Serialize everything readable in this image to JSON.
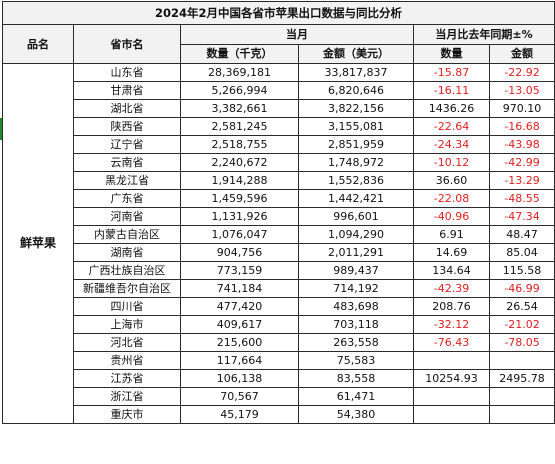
{
  "title": "2024年2月中国各省市苹果出口数据与同比分析",
  "headers": {
    "product": "品名",
    "province": "省市名",
    "current_month": "当月",
    "yoy": "当月比去年同期±%",
    "quantity": "数量（千克）",
    "amount": "金额（美元）",
    "yoy_quantity": "数量",
    "yoy_amount": "金额"
  },
  "product_name": "鲜苹果",
  "rows": [
    {
      "province": "山东省",
      "quantity": "28,369,181",
      "amount": "33,817,837",
      "yoy_quantity": "-15.87",
      "yoy_amount": "-22.92"
    },
    {
      "province": "甘肃省",
      "quantity": "5,266,994",
      "amount": "6,820,646",
      "yoy_quantity": "-16.11",
      "yoy_amount": "-13.05"
    },
    {
      "province": "湖北省",
      "quantity": "3,382,661",
      "amount": "3,822,156",
      "yoy_quantity": "1436.26",
      "yoy_amount": "970.10"
    },
    {
      "province": "陕西省",
      "quantity": "2,581,245",
      "amount": "3,155,081",
      "yoy_quantity": "-22.64",
      "yoy_amount": "-16.68"
    },
    {
      "province": "辽宁省",
      "quantity": "2,518,755",
      "amount": "2,851,959",
      "yoy_quantity": "-24.34",
      "yoy_amount": "-43.98"
    },
    {
      "province": "云南省",
      "quantity": "2,240,672",
      "amount": "1,748,972",
      "yoy_quantity": "-10.12",
      "yoy_amount": "-42.99"
    },
    {
      "province": "黑龙江省",
      "quantity": "1,914,288",
      "amount": "1,552,836",
      "yoy_quantity": "36.60",
      "yoy_amount": "-13.29"
    },
    {
      "province": "广东省",
      "quantity": "1,459,596",
      "amount": "1,442,421",
      "yoy_quantity": "-22.08",
      "yoy_amount": "-48.55"
    },
    {
      "province": "河南省",
      "quantity": "1,131,926",
      "amount": "996,601",
      "yoy_quantity": "-40.96",
      "yoy_amount": "-47.34"
    },
    {
      "province": "内蒙古自治区",
      "quantity": "1,076,047",
      "amount": "1,094,290",
      "yoy_quantity": "6.91",
      "yoy_amount": "48.47"
    },
    {
      "province": "湖南省",
      "quantity": "904,756",
      "amount": "2,011,291",
      "yoy_quantity": "14.69",
      "yoy_amount": "85.04"
    },
    {
      "province": "广西壮族自治区",
      "quantity": "773,159",
      "amount": "989,437",
      "yoy_quantity": "134.64",
      "yoy_amount": "115.58"
    },
    {
      "province": "新疆维吾尔自治区",
      "quantity": "741,184",
      "amount": "714,192",
      "yoy_quantity": "-42.39",
      "yoy_amount": "-46.99"
    },
    {
      "province": "四川省",
      "quantity": "477,420",
      "amount": "483,698",
      "yoy_quantity": "208.76",
      "yoy_amount": "26.54"
    },
    {
      "province": "上海市",
      "quantity": "409,617",
      "amount": "703,118",
      "yoy_quantity": "-32.12",
      "yoy_amount": "-21.02"
    },
    {
      "province": "河北省",
      "quantity": "215,600",
      "amount": "263,558",
      "yoy_quantity": "-76.43",
      "yoy_amount": "-78.05"
    },
    {
      "province": "贵州省",
      "quantity": "117,664",
      "amount": "75,583",
      "yoy_quantity": "",
      "yoy_amount": ""
    },
    {
      "province": "江苏省",
      "quantity": "106,138",
      "amount": "83,558",
      "yoy_quantity": "10254.93",
      "yoy_amount": "2495.78"
    },
    {
      "province": "浙江省",
      "quantity": "70,567",
      "amount": "61,471",
      "yoy_quantity": "",
      "yoy_amount": ""
    },
    {
      "province": "重庆市",
      "quantity": "45,179",
      "amount": "54,380",
      "yoy_quantity": "",
      "yoy_amount": ""
    }
  ],
  "colors": {
    "header_bg": "#f2f2f2",
    "negative": "#e02020",
    "border": "#2b2b2b",
    "left_mark": "#1e8a2e"
  }
}
